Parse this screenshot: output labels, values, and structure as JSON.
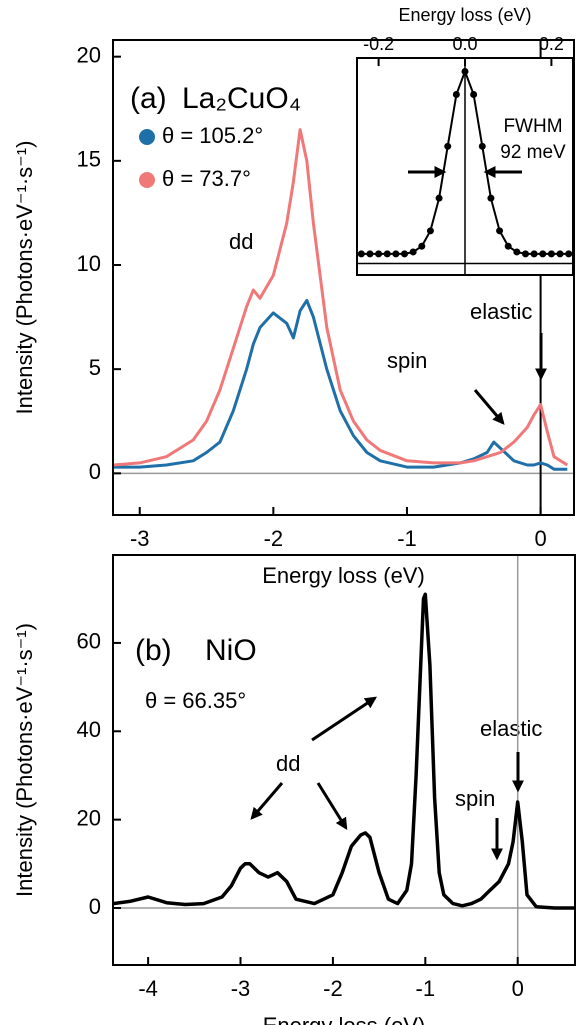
{
  "chart_data": [
    {
      "type": "line",
      "panel_label": "(a)",
      "compound": "La₂CuO₄",
      "x_label": "Energy loss (eV)",
      "y_label": "Intensity (Photons·eV⁻¹·s⁻¹)",
      "xlim": [
        -3.2,
        0.25
      ],
      "xticks": [
        -3,
        -2,
        -1,
        0
      ],
      "ylim": [
        -2,
        20.8
      ],
      "yticks": [
        0,
        5,
        10,
        15,
        20
      ],
      "x": [
        -3.2,
        -3.0,
        -2.8,
        -2.6,
        -2.5,
        -2.4,
        -2.3,
        -2.2,
        -2.15,
        -2.1,
        -2.0,
        -1.9,
        -1.85,
        -1.8,
        -1.75,
        -1.7,
        -1.6,
        -1.5,
        -1.4,
        -1.3,
        -1.2,
        -1.0,
        -0.8,
        -0.6,
        -0.5,
        -0.4,
        -0.35,
        -0.3,
        -0.2,
        -0.1,
        -0.05,
        0,
        0.05,
        0.1,
        0.2
      ],
      "series": [
        {
          "name": "θ = 105.2°",
          "color": "#1f6fa8",
          "values": [
            0.3,
            0.3,
            0.4,
            0.6,
            1.0,
            1.5,
            3.0,
            5.0,
            6.2,
            7.0,
            7.7,
            7.2,
            6.5,
            7.8,
            8.3,
            7.5,
            5.0,
            3.0,
            1.8,
            1.0,
            0.6,
            0.3,
            0.3,
            0.5,
            0.7,
            1.0,
            1.5,
            1.2,
            0.6,
            0.4,
            0.4,
            0.5,
            0.4,
            0.2,
            0.2
          ]
        },
        {
          "name": "θ = 73.7°",
          "color": "#f07878",
          "values": [
            0.4,
            0.5,
            0.8,
            1.6,
            2.5,
            4.0,
            6.0,
            8.0,
            8.8,
            8.4,
            9.5,
            12,
            14,
            16.5,
            15,
            12,
            7,
            4,
            2.5,
            1.6,
            1.1,
            0.6,
            0.5,
            0.5,
            0.6,
            0.8,
            0.9,
            1.0,
            1.5,
            2.2,
            2.8,
            3.3,
            2.0,
            0.8,
            0.4
          ]
        }
      ],
      "annotations": [
        "dd",
        "spin",
        "elastic"
      ]
    },
    {
      "type": "line",
      "markers": true,
      "x_label": "Energy loss (eV)",
      "xlim": [
        -0.25,
        0.25
      ],
      "xticks": [
        -0.2,
        {
          "value": 0,
          "label": "0.0"
        },
        0.2
      ],
      "ylim": [
        -0.06,
        1.07
      ],
      "color": "#000000",
      "x": [
        -0.24,
        -0.22,
        -0.2,
        -0.18,
        -0.16,
        -0.14,
        -0.12,
        -0.1,
        -0.08,
        -0.06,
        -0.04,
        -0.02,
        0,
        0.02,
        0.04,
        0.06,
        0.08,
        0.1,
        0.12,
        0.14,
        0.16,
        0.18,
        0.2,
        0.22,
        0.24
      ],
      "values": [
        0.05,
        0.05,
        0.05,
        0.05,
        0.05,
        0.05,
        0.06,
        0.09,
        0.17,
        0.34,
        0.61,
        0.88,
        1.0,
        0.88,
        0.61,
        0.34,
        0.17,
        0.09,
        0.06,
        0.05,
        0.05,
        0.05,
        0.05,
        0.05,
        0.05
      ],
      "annotations": [
        "FWHM",
        "92 meV"
      ]
    },
    {
      "type": "line",
      "panel_label": "(b)",
      "compound": "NiO",
      "angle": "θ = 66.35°",
      "x_label": "Energy loss (eV)",
      "y_label": "Intensity (Photons·eV⁻¹·s⁻¹)",
      "xlim": [
        -4.38,
        0.62
      ],
      "xticks": [
        -4,
        -3,
        -2,
        -1,
        0
      ],
      "ylim": [
        -12.9,
        79.9
      ],
      "yticks": [
        0,
        20,
        40,
        60
      ],
      "color": "#000000",
      "x": [
        -4.38,
        -4.2,
        -4.0,
        -3.8,
        -3.6,
        -3.4,
        -3.2,
        -3.1,
        -3.0,
        -2.95,
        -2.9,
        -2.8,
        -2.7,
        -2.6,
        -2.5,
        -2.4,
        -2.2,
        -2.0,
        -1.9,
        -1.8,
        -1.7,
        -1.65,
        -1.6,
        -1.5,
        -1.4,
        -1.3,
        -1.2,
        -1.15,
        -1.1,
        -1.05,
        -1.02,
        -1.0,
        -0.95,
        -0.9,
        -0.85,
        -0.8,
        -0.7,
        -0.6,
        -0.5,
        -0.4,
        -0.3,
        -0.2,
        -0.1,
        -0.05,
        0,
        0.05,
        0.1,
        0.2,
        0.4,
        0.62
      ],
      "values": [
        1,
        1.5,
        2.5,
        1.2,
        0.8,
        1.0,
        2.5,
        5,
        9,
        10,
        10,
        8,
        7,
        8,
        6,
        2,
        1,
        3,
        8,
        14,
        16.5,
        17,
        16,
        8,
        2,
        1,
        4,
        10,
        30,
        55,
        70,
        71,
        55,
        25,
        8,
        3,
        1,
        0.5,
        1,
        2,
        4,
        6,
        10,
        15,
        24,
        15,
        3,
        0.3,
        0,
        0
      ],
      "annotations": [
        "dd",
        "spin",
        "elastic"
      ]
    }
  ]
}
